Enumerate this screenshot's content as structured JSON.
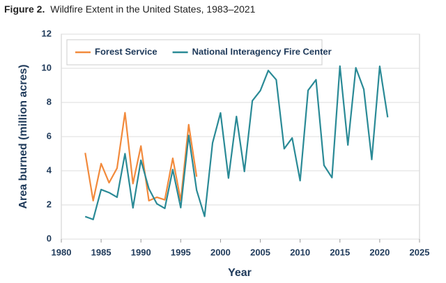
{
  "chart_data": {
    "type": "line",
    "figure_label": "Figure 2.",
    "title": "Wildfire Extent in the United States, 1983–2021",
    "x_label": "Year",
    "y_label": "Area burned (million acres)",
    "x": [
      1983,
      1984,
      1985,
      1986,
      1987,
      1988,
      1989,
      1990,
      1991,
      1992,
      1993,
      1994,
      1995,
      1996,
      1997,
      1998,
      1999,
      2000,
      2001,
      2002,
      2003,
      2004,
      2005,
      2006,
      2007,
      2008,
      2009,
      2010,
      2011,
      2012,
      2013,
      2014,
      2015,
      2016,
      2017,
      2018,
      2019,
      2020,
      2021
    ],
    "series": [
      {
        "name": "Forest Service",
        "color": "#f28a3c",
        "values": [
          5.05,
          2.25,
          4.42,
          3.3,
          4.15,
          7.4,
          3.25,
          5.45,
          2.25,
          2.45,
          2.3,
          4.73,
          2.25,
          6.7,
          3.65,
          null,
          null,
          null,
          null,
          null,
          null,
          null,
          null,
          null,
          null,
          null,
          null,
          null,
          null,
          null,
          null,
          null,
          null,
          null,
          null,
          null,
          null,
          null,
          null
        ]
      },
      {
        "name": "National Interagency Fire Center",
        "color": "#2a8a96",
        "values": [
          1.32,
          1.15,
          2.9,
          2.72,
          2.45,
          5.0,
          1.83,
          4.62,
          2.95,
          2.07,
          1.8,
          4.07,
          1.84,
          6.07,
          2.86,
          1.33,
          5.63,
          7.39,
          3.57,
          7.18,
          3.96,
          8.1,
          8.69,
          9.87,
          9.33,
          5.29,
          5.92,
          3.42,
          8.71,
          9.33,
          4.32,
          3.6,
          10.13,
          5.51,
          10.03,
          8.77,
          4.66,
          10.12,
          7.13
        ]
      }
    ],
    "xlim": [
      1980,
      2025
    ],
    "xticks": [
      1980,
      1985,
      1990,
      1995,
      2000,
      2005,
      2010,
      2015,
      2020,
      2025
    ],
    "ylim": [
      0,
      12
    ],
    "yticks": [
      0,
      2,
      4,
      6,
      8,
      10,
      12
    ],
    "grid": true,
    "legend": "top-left"
  }
}
